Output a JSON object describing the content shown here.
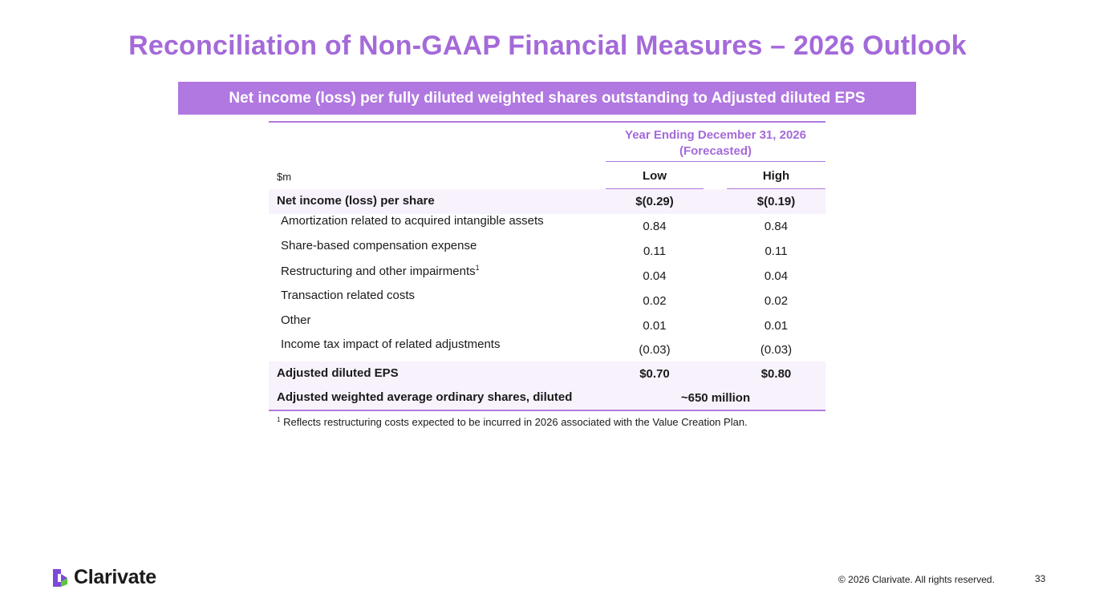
{
  "title": "Reconciliation of Non-GAAP Financial Measures – 2026 Outlook",
  "banner": "Net income (loss) per fully diluted weighted shares outstanding to Adjusted diluted EPS",
  "table": {
    "period_line1": "Year Ending December 31, 2026",
    "period_line2": "(Forecasted)",
    "unit": "$m",
    "col_low": "Low",
    "col_high": "High",
    "rows": [
      {
        "label": "Net income (loss) per share",
        "low": "$(0.29)",
        "high": "$(0.19)"
      },
      {
        "label": "Amortization related to acquired intangible assets",
        "low": "0.84",
        "high": "0.84"
      },
      {
        "label": "Share-based compensation expense",
        "low": "0.11",
        "high": "0.11"
      },
      {
        "label": "Restructuring and other impairments",
        "sup": "1",
        "low": "0.04",
        "high": "0.04"
      },
      {
        "label": "Transaction related costs",
        "low": "0.02",
        "high": "0.02"
      },
      {
        "label": "Other",
        "low": "0.01",
        "high": "0.01"
      },
      {
        "label": "Income tax impact of related adjustments",
        "low": "(0.03)",
        "high": "(0.03)"
      },
      {
        "label": "Adjusted diluted EPS",
        "low": "$0.70",
        "high": "$0.80"
      },
      {
        "label": "Adjusted weighted average ordinary shares, diluted",
        "value": "~650 million"
      }
    ]
  },
  "footnote": {
    "marker": "1",
    "text": "Reflects restructuring costs expected to be incurred in 2026 associated with the Value Creation Plan."
  },
  "footer": {
    "brand": "Clarivate",
    "copyright": "© 2026 Clarivate. All rights reserved.",
    "page_number": "33"
  },
  "colors": {
    "accent": "#a46ad9",
    "banner": "#b078e0",
    "row_shade": "#f8f2fd",
    "logo_purple": "#7d4ad8",
    "logo_green": "#5cc343"
  }
}
